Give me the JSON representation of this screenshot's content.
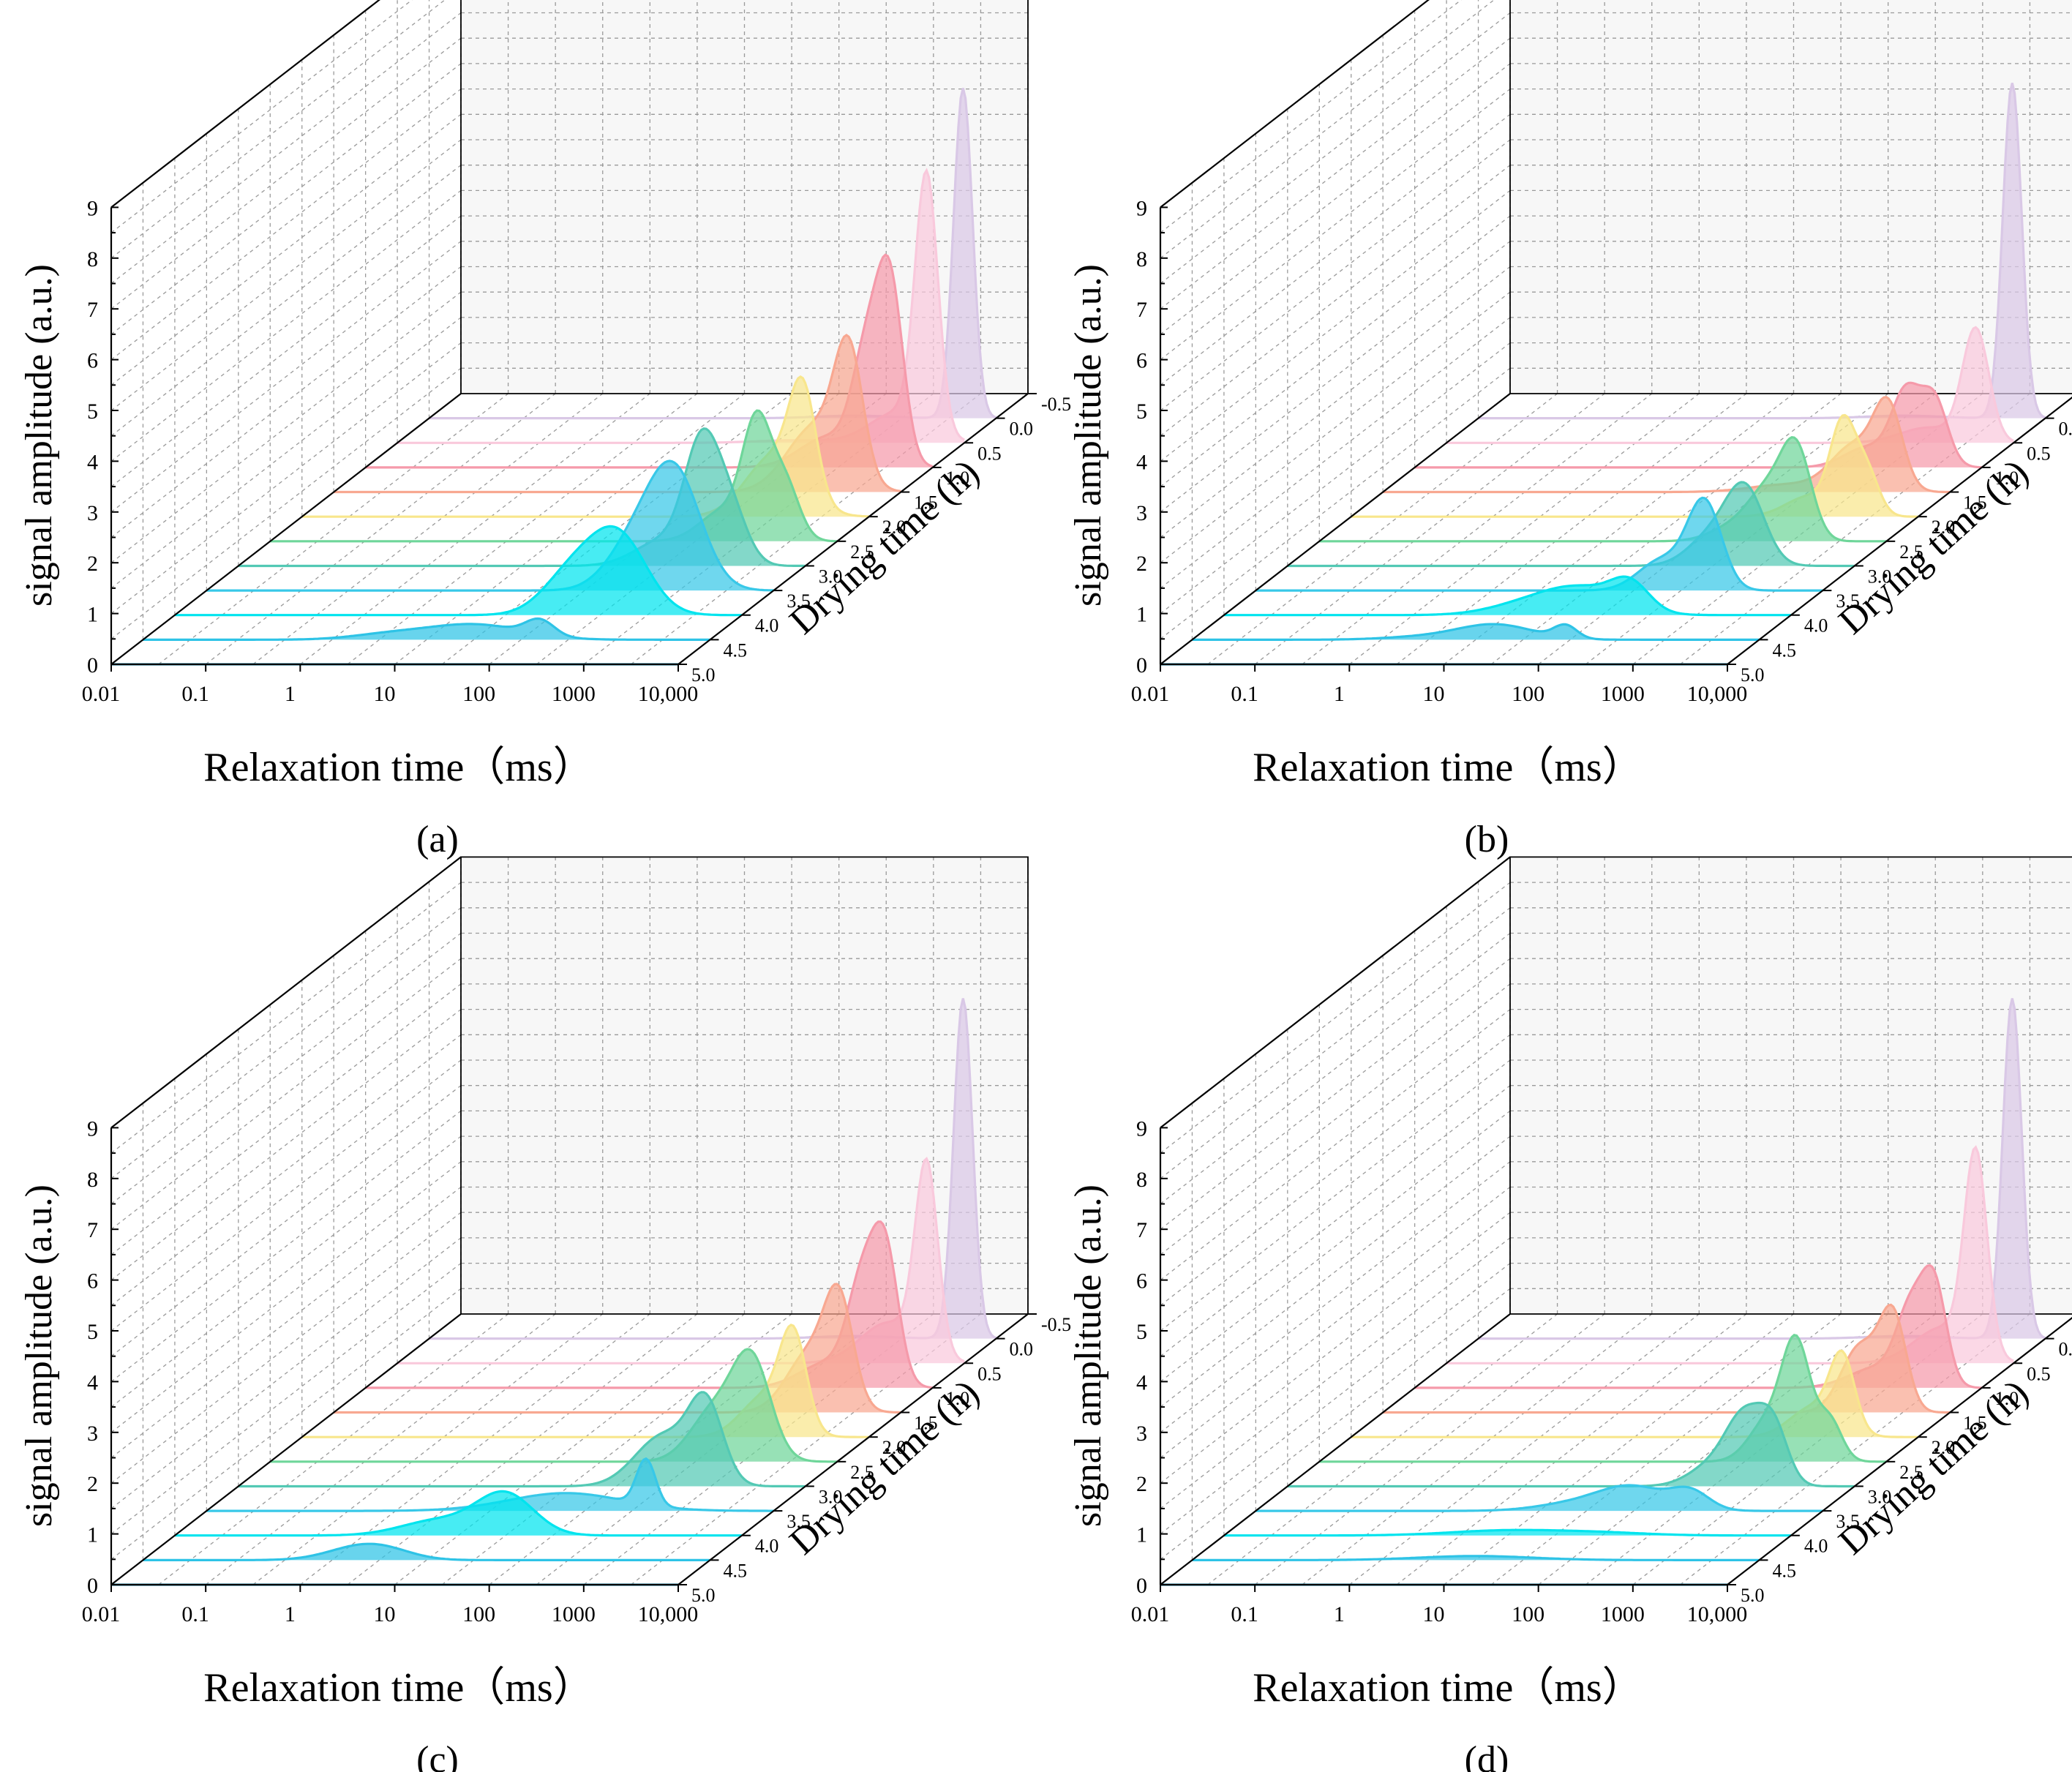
{
  "chart_data": [
    {
      "type": "waterfall3d",
      "panel_label": "(a)",
      "xlabel": "Relaxation time（ms）",
      "ylabel": "signal amplitude (a.u.)",
      "zlabel": "Drying time (h)",
      "x_ticks": [
        "0.01",
        "0.1",
        "1",
        "10",
        "100",
        "1000",
        "10,000"
      ],
      "y_ticks": [
        "0",
        "1",
        "2",
        "3",
        "4",
        "5",
        "6",
        "7",
        "8",
        "9"
      ],
      "z_ticks": [
        "-0.5",
        "0.0",
        "0.5",
        "1.0",
        "1.5",
        "2.0",
        "2.5",
        "3.0",
        "3.5",
        "4.0",
        "4.5",
        "5.0"
      ],
      "xlim_log10": [
        -2,
        4
      ],
      "ylim": [
        0,
        9
      ],
      "series": [
        {
          "name": "0.0",
          "peaks": [
            {
              "x": 3.65,
              "h": 6.5,
              "w": 0.1
            },
            {
              "x": 2.5,
              "h": 0.05,
              "w": 0.4
            }
          ]
        },
        {
          "name": "0.5",
          "peaks": [
            {
              "x": 3.6,
              "h": 5.0,
              "w": 0.12
            },
            {
              "x": 3.3,
              "h": 0.6,
              "w": 0.3
            },
            {
              "x": 2.2,
              "h": 0.05,
              "w": 0.4
            }
          ]
        },
        {
          "name": "1.0",
          "peaks": [
            {
              "x": 3.55,
              "h": 3.5,
              "w": 0.14
            },
            {
              "x": 3.3,
              "h": 2.0,
              "w": 0.15
            },
            {
              "x": 2.9,
              "h": 0.6,
              "w": 0.3
            }
          ]
        },
        {
          "name": "1.5",
          "peaks": [
            {
              "x": 3.45,
              "h": 2.4,
              "w": 0.15
            },
            {
              "x": 3.1,
              "h": 1.3,
              "w": 0.3
            }
          ]
        },
        {
          "name": "2.0",
          "peaks": [
            {
              "x": 3.3,
              "h": 2.0,
              "w": 0.14
            },
            {
              "x": 3.0,
              "h": 1.2,
              "w": 0.3
            }
          ]
        },
        {
          "name": "2.5",
          "peaks": [
            {
              "x": 3.15,
              "h": 2.2,
              "w": 0.15
            },
            {
              "x": 3.45,
              "h": 1.1,
              "w": 0.15
            },
            {
              "x": 2.8,
              "h": 0.6,
              "w": 0.25
            }
          ]
        },
        {
          "name": "3.0",
          "peaks": [
            {
              "x": 2.9,
              "h": 2.2,
              "w": 0.18
            },
            {
              "x": 3.2,
              "h": 1.1,
              "w": 0.18
            },
            {
              "x": 2.5,
              "h": 0.5,
              "w": 0.3
            }
          ]
        },
        {
          "name": "3.5",
          "peaks": [
            {
              "x": 2.95,
              "h": 2.3,
              "w": 0.28
            },
            {
              "x": 2.5,
              "h": 0.8,
              "w": 0.28
            }
          ]
        },
        {
          "name": "4.0",
          "peaks": [
            {
              "x": 2.7,
              "h": 1.5,
              "w": 0.3
            },
            {
              "x": 2.2,
              "h": 0.8,
              "w": 0.3
            }
          ]
        },
        {
          "name": "4.5",
          "peaks": [
            {
              "x": 1.5,
              "h": 0.3,
              "w": 0.5
            },
            {
              "x": 2.2,
              "h": 0.3,
              "w": 0.15
            },
            {
              "x": 0.6,
              "h": 0.1,
              "w": 0.4
            }
          ]
        },
        {
          "name": "5.0",
          "peaks": []
        }
      ]
    },
    {
      "type": "waterfall3d",
      "panel_label": "(b)",
      "xlabel": "Relaxation time（ms）",
      "ylabel": "signal amplitude (a.u.)",
      "zlabel": "Drying time (h)",
      "x_ticks": [
        "0.01",
        "0.1",
        "1",
        "10",
        "100",
        "1000",
        "10,000"
      ],
      "y_ticks": [
        "0",
        "1",
        "2",
        "3",
        "4",
        "5",
        "6",
        "7",
        "8",
        "9"
      ],
      "z_ticks": [
        "-0.5",
        "0.0",
        "0.5",
        "1.0",
        "1.5",
        "2.0",
        "2.5",
        "3.0",
        "3.5",
        "4.0",
        "4.5",
        "5.0"
      ],
      "xlim_log10": [
        -2,
        4
      ],
      "ylim": [
        0,
        9
      ],
      "series": [
        {
          "name": "0.0",
          "peaks": [
            {
              "x": 3.65,
              "h": 6.6,
              "w": 0.1
            },
            {
              "x": 2.5,
              "h": 0.05,
              "w": 0.4
            }
          ]
        },
        {
          "name": "0.5",
          "peaks": [
            {
              "x": 3.6,
              "h": 2.2,
              "w": 0.14
            },
            {
              "x": 3.1,
              "h": 0.3,
              "w": 0.3
            }
          ]
        },
        {
          "name": "1.0",
          "peaks": [
            {
              "x": 3.5,
              "h": 1.3,
              "w": 0.14
            },
            {
              "x": 3.2,
              "h": 1.4,
              "w": 0.15
            },
            {
              "x": 2.8,
              "h": 0.4,
              "w": 0.25
            }
          ]
        },
        {
          "name": "1.5",
          "peaks": [
            {
              "x": 3.35,
              "h": 1.5,
              "w": 0.15
            },
            {
              "x": 3.0,
              "h": 0.9,
              "w": 0.25
            },
            {
              "x": 2.3,
              "h": 0.15,
              "w": 0.4
            }
          ]
        },
        {
          "name": "2.0",
          "peaks": [
            {
              "x": 3.2,
              "h": 1.7,
              "w": 0.13
            },
            {
              "x": 3.45,
              "h": 0.9,
              "w": 0.13
            },
            {
              "x": 2.85,
              "h": 0.4,
              "w": 0.25
            }
          ]
        },
        {
          "name": "2.5",
          "peaks": [
            {
              "x": 3.05,
              "h": 1.7,
              "w": 0.16
            },
            {
              "x": 2.75,
              "h": 0.9,
              "w": 0.2
            },
            {
              "x": 2.4,
              "h": 0.3,
              "w": 0.25
            }
          ]
        },
        {
          "name": "3.0",
          "peaks": [
            {
              "x": 2.85,
              "h": 1.4,
              "w": 0.2
            },
            {
              "x": 2.5,
              "h": 0.6,
              "w": 0.25
            }
          ]
        },
        {
          "name": "3.5",
          "peaks": [
            {
              "x": 2.75,
              "h": 1.7,
              "w": 0.18
            },
            {
              "x": 2.3,
              "h": 0.6,
              "w": 0.25
            }
          ]
        },
        {
          "name": "4.0",
          "peaks": [
            {
              "x": 1.8,
              "h": 0.5,
              "w": 0.4
            },
            {
              "x": 2.3,
              "h": 0.5,
              "w": 0.2
            },
            {
              "x": 1.2,
              "h": 0.2,
              "w": 0.4
            }
          ]
        },
        {
          "name": "4.5",
          "peaks": [
            {
              "x": 1.2,
              "h": 0.3,
              "w": 0.4
            },
            {
              "x": 1.95,
              "h": 0.25,
              "w": 0.12
            },
            {
              "x": 0.4,
              "h": 0.05,
              "w": 0.4
            }
          ]
        },
        {
          "name": "5.0",
          "peaks": []
        }
      ]
    },
    {
      "type": "waterfall3d",
      "panel_label": "(c)",
      "xlabel": "Relaxation time（ms）",
      "ylabel": "signal amplitude (a.u.)",
      "zlabel": "Drying time (h)",
      "x_ticks": [
        "0.01",
        "0.1",
        "1",
        "10",
        "100",
        "1000",
        "10,000"
      ],
      "y_ticks": [
        "0",
        "1",
        "2",
        "3",
        "4",
        "5",
        "6",
        "7",
        "8",
        "9"
      ],
      "z_ticks": [
        "-0.5",
        "0.0",
        "0.5",
        "1.0",
        "1.5",
        "2.0",
        "2.5",
        "3.0",
        "3.5",
        "4.0",
        "4.5",
        "5.0"
      ],
      "xlim_log10": [
        -2,
        4
      ],
      "ylim": [
        0,
        9
      ],
      "series": [
        {
          "name": "0.0",
          "peaks": [
            {
              "x": 3.65,
              "h": 6.7,
              "w": 0.1
            },
            {
              "x": 2.5,
              "h": 0.05,
              "w": 0.4
            }
          ]
        },
        {
          "name": "0.5",
          "peaks": [
            {
              "x": 3.6,
              "h": 3.7,
              "w": 0.12
            },
            {
              "x": 3.2,
              "h": 0.8,
              "w": 0.3
            }
          ]
        },
        {
          "name": "1.0",
          "peaks": [
            {
              "x": 3.5,
              "h": 2.6,
              "w": 0.14
            },
            {
              "x": 3.25,
              "h": 1.8,
              "w": 0.15
            },
            {
              "x": 2.9,
              "h": 0.5,
              "w": 0.3
            }
          ]
        },
        {
          "name": "1.5",
          "peaks": [
            {
              "x": 3.35,
              "h": 1.9,
              "w": 0.15
            },
            {
              "x": 3.05,
              "h": 1.2,
              "w": 0.25
            }
          ]
        },
        {
          "name": "2.0",
          "peaks": [
            {
              "x": 3.2,
              "h": 1.8,
              "w": 0.14
            },
            {
              "x": 2.9,
              "h": 0.8,
              "w": 0.25
            }
          ]
        },
        {
          "name": "2.5",
          "peaks": [
            {
              "x": 3.1,
              "h": 1.9,
              "w": 0.2
            },
            {
              "x": 2.7,
              "h": 1.0,
              "w": 0.25
            }
          ]
        },
        {
          "name": "3.0",
          "peaks": [
            {
              "x": 2.95,
              "h": 1.5,
              "w": 0.18
            },
            {
              "x": 2.5,
              "h": 1.0,
              "w": 0.3
            }
          ]
        },
        {
          "name": "3.5",
          "peaks": [
            {
              "x": 2.65,
              "h": 0.9,
              "w": 0.1
            },
            {
              "x": 1.8,
              "h": 0.35,
              "w": 0.6
            }
          ]
        },
        {
          "name": "4.0",
          "peaks": [
            {
              "x": 1.5,
              "h": 0.8,
              "w": 0.3
            },
            {
              "x": 0.8,
              "h": 0.3,
              "w": 0.4
            }
          ]
        },
        {
          "name": "4.5",
          "peaks": [
            {
              "x": 0.3,
              "h": 0.25,
              "w": 0.35
            },
            {
              "x": 0.6,
              "h": 0.1,
              "w": 0.3
            }
          ]
        },
        {
          "name": "5.0",
          "peaks": []
        }
      ]
    },
    {
      "type": "waterfall3d",
      "panel_label": "(d)",
      "xlabel": "Relaxation time（ms）",
      "ylabel": "signal amplitude (a.u.)",
      "zlabel": "Drying time (h)",
      "x_ticks": [
        "0.01",
        "0.1",
        "1",
        "10",
        "100",
        "1000",
        "10,000"
      ],
      "y_ticks": [
        "0",
        "1",
        "2",
        "3",
        "4",
        "5",
        "6",
        "7",
        "8",
        "9"
      ],
      "z_ticks": [
        "-0.5",
        "0.0",
        "0.5",
        "1.0",
        "1.5",
        "2.0",
        "2.5",
        "3.0",
        "3.5",
        "4.0",
        "4.5",
        "5.0"
      ],
      "xlim_log10": [
        -2,
        4
      ],
      "ylim": [
        0,
        9
      ],
      "series": [
        {
          "name": "0.0",
          "peaks": [
            {
              "x": 3.65,
              "h": 6.7,
              "w": 0.1
            },
            {
              "x": 2.5,
              "h": 0.05,
              "w": 0.4
            }
          ]
        },
        {
          "name": "0.5",
          "peaks": [
            {
              "x": 3.6,
              "h": 3.9,
              "w": 0.12
            },
            {
              "x": 3.25,
              "h": 0.7,
              "w": 0.3
            }
          ]
        },
        {
          "name": "1.0",
          "peaks": [
            {
              "x": 3.5,
              "h": 1.9,
              "w": 0.13
            },
            {
              "x": 3.25,
              "h": 1.4,
              "w": 0.15
            },
            {
              "x": 2.9,
              "h": 0.4,
              "w": 0.3
            }
          ]
        },
        {
          "name": "1.5",
          "peaks": [
            {
              "x": 3.4,
              "h": 1.8,
              "w": 0.14
            },
            {
              "x": 3.05,
              "h": 1.3,
              "w": 0.2
            }
          ]
        },
        {
          "name": "2.0",
          "peaks": [
            {
              "x": 3.2,
              "h": 1.4,
              "w": 0.13
            },
            {
              "x": 2.9,
              "h": 0.6,
              "w": 0.25
            }
          ]
        },
        {
          "name": "2.5",
          "peaks": [
            {
              "x": 3.05,
              "h": 2.2,
              "w": 0.15
            },
            {
              "x": 3.4,
              "h": 0.8,
              "w": 0.13
            },
            {
              "x": 2.75,
              "h": 0.8,
              "w": 0.2
            }
          ]
        },
        {
          "name": "3.0",
          "peaks": [
            {
              "x": 2.85,
              "h": 1.3,
              "w": 0.2
            },
            {
              "x": 3.15,
              "h": 1.0,
              "w": 0.15
            },
            {
              "x": 2.5,
              "h": 0.4,
              "w": 0.25
            }
          ]
        },
        {
          "name": "3.5",
          "peaks": [
            {
              "x": 2.0,
              "h": 0.45,
              "w": 0.35
            },
            {
              "x": 2.6,
              "h": 0.35,
              "w": 0.2
            },
            {
              "x": 1.4,
              "h": 0.15,
              "w": 0.4
            }
          ]
        },
        {
          "name": "4.0",
          "peaks": [
            {
              "x": 1.0,
              "h": 0.1,
              "w": 0.6
            },
            {
              "x": 2.0,
              "h": 0.05,
              "w": 0.5
            }
          ]
        },
        {
          "name": "4.5",
          "peaks": [
            {
              "x": 1.0,
              "h": 0.08,
              "w": 0.6
            }
          ]
        },
        {
          "name": "5.0",
          "peaks": []
        }
      ]
    }
  ],
  "colors": {
    "0.0": "#d9c8e6",
    "0.5": "#f9c9dc",
    "1.0": "#f59aaa",
    "1.5": "#f8a891",
    "2.0": "#f8e68c",
    "2.5": "#6fd69a",
    "3.0": "#53c9b4",
    "3.5": "#38c8e8",
    "4.0": "#00e4ee",
    "4.5": "#2ec3e6",
    "5.0": "#3c9ab8",
    "axis": "#000000",
    "grid": "#9a9a9a",
    "backwall": "#f7f7f7"
  }
}
